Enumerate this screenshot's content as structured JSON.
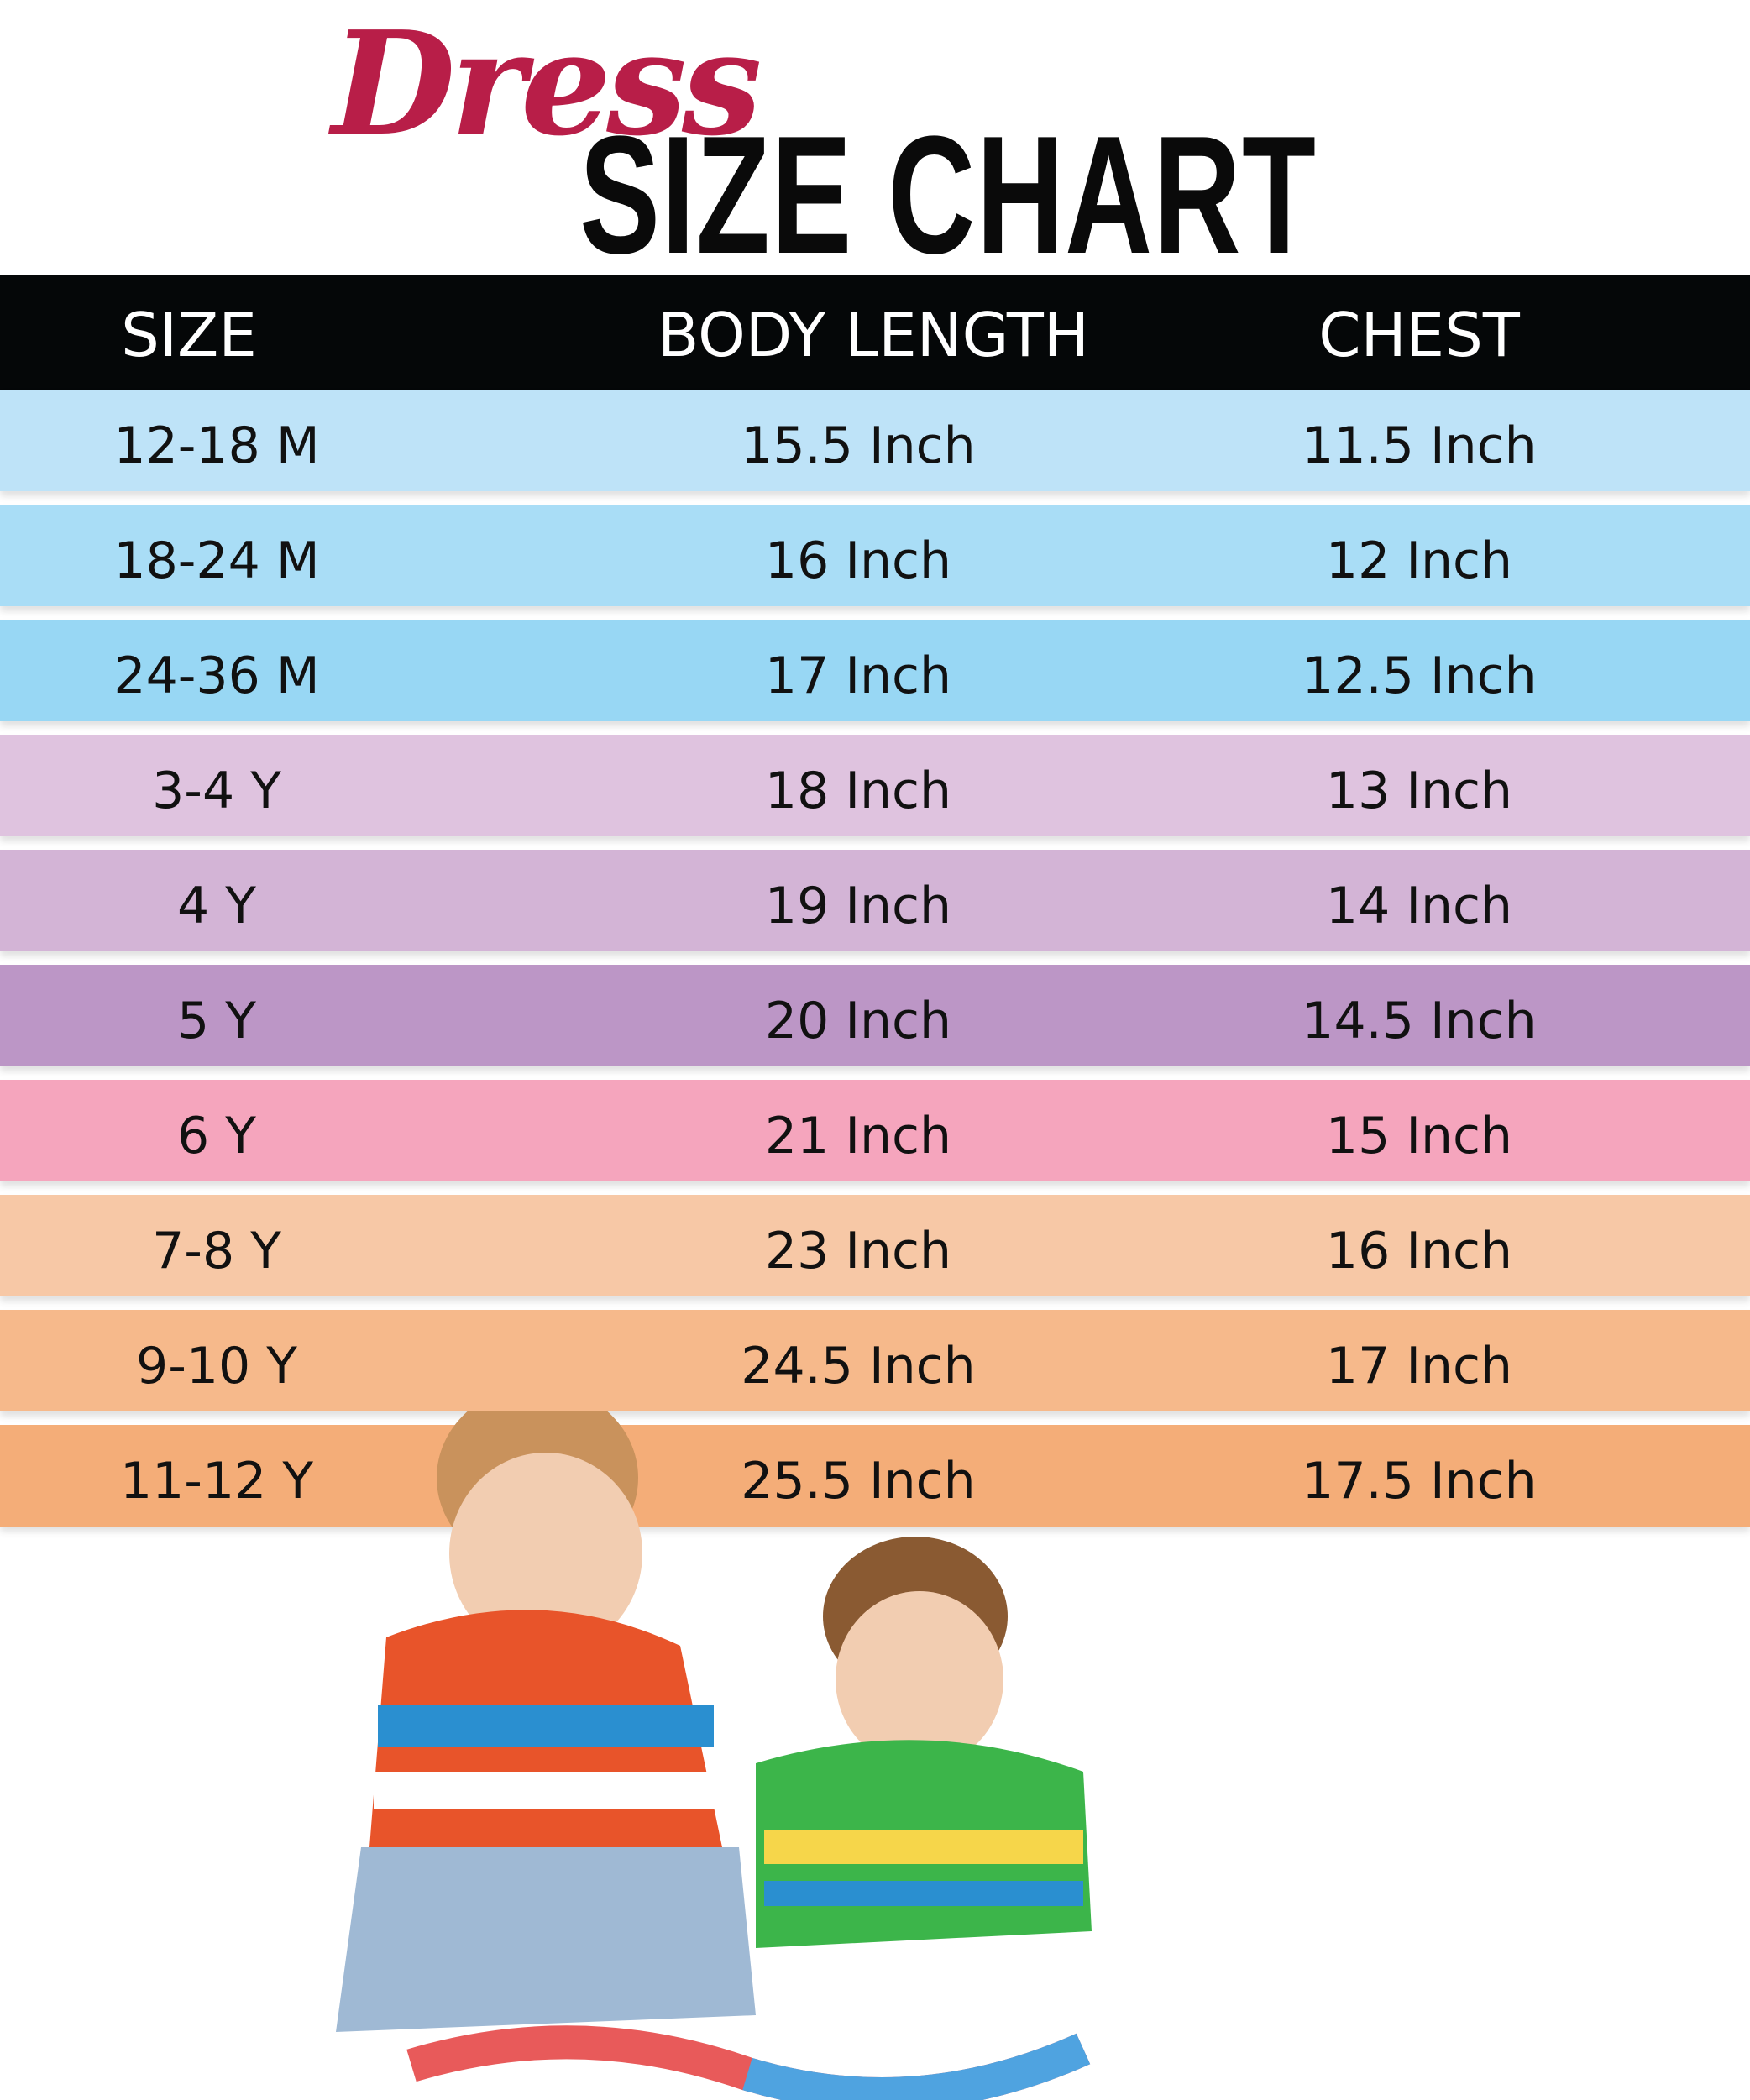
{
  "title": {
    "script_word": "Dress",
    "main": "SIZE CHART"
  },
  "table": {
    "headers": [
      "SIZE",
      "BODY LENGTH",
      "CHEST"
    ],
    "rows": [
      {
        "size": "12-18 M",
        "body_length": "15.5 Inch",
        "chest": "11.5 Inch",
        "color": "#bee3f8"
      },
      {
        "size": "18-24 M",
        "body_length": "16 Inch",
        "chest": "12 Inch",
        "color": "#a9ddf6"
      },
      {
        "size": "24-36 M",
        "body_length": "17 Inch",
        "chest": "12.5 Inch",
        "color": "#98d7f4"
      },
      {
        "size": "3-4 Y",
        "body_length": "18 Inch",
        "chest": "13 Inch",
        "color": "#dfc3df"
      },
      {
        "size": "4 Y",
        "body_length": "19 Inch",
        "chest": "14 Inch",
        "color": "#d3b4d6"
      },
      {
        "size": "5 Y",
        "body_length": "20 Inch",
        "chest": "14.5 Inch",
        "color": "#bc96c6"
      },
      {
        "size": "6 Y",
        "body_length": "21 Inch",
        "chest": "15 Inch",
        "color": "#f5a5bd"
      },
      {
        "size": "7-8 Y",
        "body_length": "23 Inch",
        "chest": "16 Inch",
        "color": "#f7c8a6"
      },
      {
        "size": "9-10 Y",
        "body_length": "24.5 Inch",
        "chest": "17 Inch",
        "color": "#f6b98b"
      },
      {
        "size": "11-12 Y",
        "body_length": "25.5 Inch",
        "chest": "17.5 Inch",
        "color": "#f4ad78"
      }
    ]
  },
  "colors": {
    "accent": "#b81e48",
    "header_bg": "#050708"
  }
}
